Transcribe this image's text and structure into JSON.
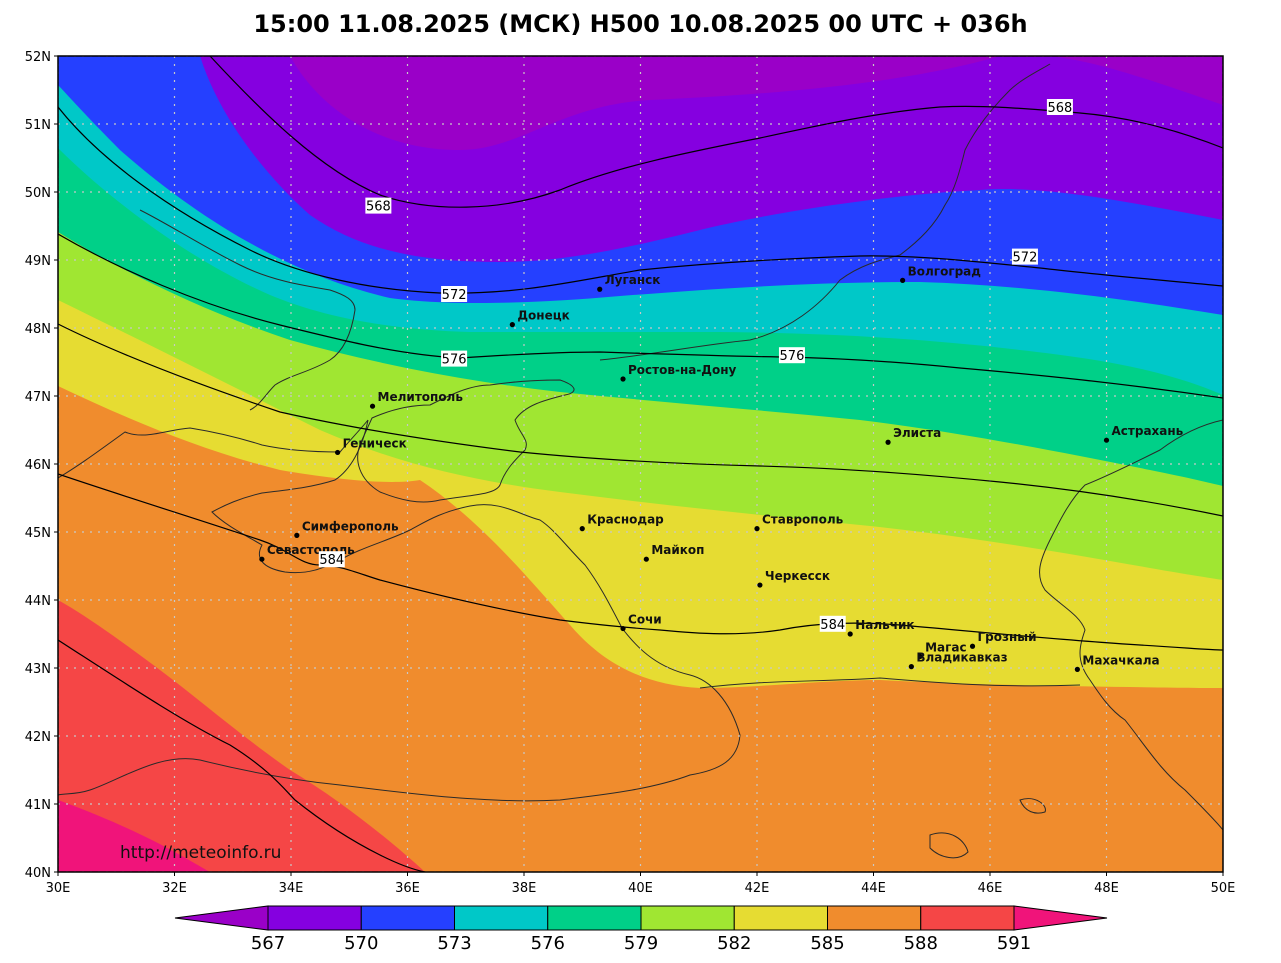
{
  "title": "15:00 11.08.2025 (МСК) H500  10.08.2025 00 UTC + 036h",
  "website": "http://meteoinfo.ru",
  "axes": {
    "lat_ticks": [
      "40N",
      "41N",
      "42N",
      "43N",
      "44N",
      "45N",
      "46N",
      "47N",
      "48N",
      "49N",
      "50N",
      "51N",
      "52N"
    ],
    "lon_ticks": [
      "30E",
      "32E",
      "34E",
      "36E",
      "38E",
      "40E",
      "42E",
      "44E",
      "46E",
      "48E",
      "50E"
    ],
    "lat_range": [
      40,
      52
    ],
    "lon_range": [
      30,
      50
    ]
  },
  "colors": {
    "bands": [
      "#9a00c8",
      "#8500e0",
      "#2540ff",
      "#00c8c8",
      "#00d088",
      "#a0e632",
      "#e6dc32",
      "#f08c2d",
      "#f54646",
      "#f0147a"
    ],
    "isoline": "#000000",
    "coast": "#2a2a2a",
    "grid": "#c8c8c8"
  },
  "colorbar": {
    "labels": [
      "567",
      "570",
      "573",
      "576",
      "579",
      "582",
      "585",
      "588",
      "591"
    ],
    "colors": [
      "#9a00c8",
      "#8500e0",
      "#2540ff",
      "#00c8c8",
      "#00d088",
      "#a0e632",
      "#e6dc32",
      "#f08c2d",
      "#f54646",
      "#f0147a"
    ]
  },
  "contours": [
    {
      "value": "568",
      "labels": [
        [
          35.5,
          49.8
        ],
        [
          47.2,
          51.25
        ]
      ]
    },
    {
      "value": "572",
      "labels": [
        [
          36.8,
          48.5
        ],
        [
          46.6,
          49.05
        ]
      ]
    },
    {
      "value": "576",
      "labels": [
        [
          36.8,
          47.55
        ],
        [
          42.6,
          47.6
        ]
      ]
    },
    {
      "value": "584",
      "labels": [
        [
          34.7,
          44.6
        ],
        [
          43.3,
          43.65
        ]
      ]
    }
  ],
  "cities": [
    {
      "name": "Луганск",
      "lon": 39.3,
      "lat": 48.57
    },
    {
      "name": "Донецк",
      "lon": 37.8,
      "lat": 48.05
    },
    {
      "name": "Волгоград",
      "lon": 44.5,
      "lat": 48.7
    },
    {
      "name": "Ростов-на-Дону",
      "lon": 39.7,
      "lat": 47.25
    },
    {
      "name": "Мелитополь",
      "lon": 35.4,
      "lat": 46.85
    },
    {
      "name": "Элиста",
      "lon": 44.25,
      "lat": 46.32
    },
    {
      "name": "Астрахань",
      "lon": 48.0,
      "lat": 46.35
    },
    {
      "name": "Геническ",
      "lon": 34.8,
      "lat": 46.17
    },
    {
      "name": "Краснодар",
      "lon": 39.0,
      "lat": 45.05
    },
    {
      "name": "Ставрополь",
      "lon": 42.0,
      "lat": 45.05
    },
    {
      "name": "Симферополь",
      "lon": 34.1,
      "lat": 44.95
    },
    {
      "name": "Майкоп",
      "lon": 40.1,
      "lat": 44.6
    },
    {
      "name": "Севастополь",
      "lon": 33.5,
      "lat": 44.6
    },
    {
      "name": "Черкесск",
      "lon": 42.05,
      "lat": 44.22
    },
    {
      "name": "Сочи",
      "lon": 39.7,
      "lat": 43.58
    },
    {
      "name": "Нальчик",
      "lon": 43.6,
      "lat": 43.5
    },
    {
      "name": "Грозный",
      "lon": 45.7,
      "lat": 43.32
    },
    {
      "name": "Магас",
      "lon": 44.8,
      "lat": 43.17
    },
    {
      "name": "Владикавказ",
      "lon": 44.65,
      "lat": 43.02
    },
    {
      "name": "Махачкала",
      "lon": 47.5,
      "lat": 42.98
    }
  ]
}
